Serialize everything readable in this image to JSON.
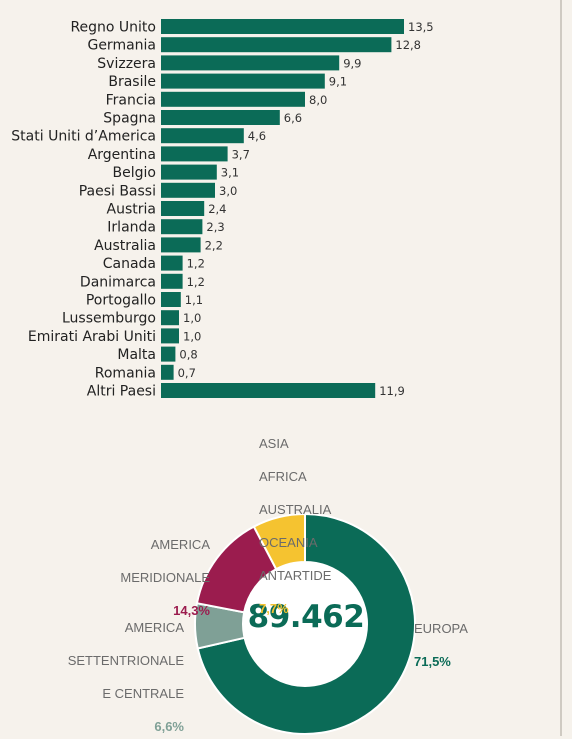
{
  "chart_data": [
    {
      "type": "bar",
      "orientation": "horizontal",
      "categories": [
        "Regno Unito",
        "Germania",
        "Svizzera",
        "Brasile",
        "Francia",
        "Spagna",
        "Stati Uniti d’America",
        "Argentina",
        "Belgio",
        "Paesi Bassi",
        "Austria",
        "Irlanda",
        "Australia",
        "Canada",
        "Danimarca",
        "Portogallo",
        "Lussemburgo",
        "Emirati Arabi Uniti",
        "Malta",
        "Romania",
        "Altri Paesi"
      ],
      "values": [
        13.5,
        12.8,
        9.9,
        9.1,
        8.0,
        6.6,
        4.6,
        3.7,
        3.1,
        3.0,
        2.4,
        2.3,
        2.2,
        1.2,
        1.2,
        1.1,
        1.0,
        1.0,
        0.8,
        0.7,
        11.9
      ],
      "value_labels": [
        "13,5",
        "12,8",
        "9,9",
        "9,1",
        "8,0",
        "6,6",
        "4,6",
        "3,7",
        "3,1",
        "3,0",
        "2,4",
        "2,3",
        "2,2",
        "1,2",
        "1,2",
        "1,1",
        "1,0",
        "1,0",
        "0,8",
        "0,7",
        "11,9"
      ],
      "bar_color": "#0b6b57",
      "grid": false
    },
    {
      "type": "pie",
      "style": "donut",
      "center_label": "89.462",
      "slices": [
        {
          "lines": [
            "EUROPA"
          ],
          "pct": "71,5%",
          "value": 71.5,
          "color": "#0b6b57",
          "label_color": "#0b6b57"
        },
        {
          "lines": [
            "AMERICA",
            "SETTENTRIONALE",
            "E CENTRALE"
          ],
          "pct": "6,6%",
          "value": 6.6,
          "color": "#7fa096",
          "label_color": "#7fa096"
        },
        {
          "lines": [
            "AMERICA",
            "MERIDIONALE"
          ],
          "pct": "14,3%",
          "value": 14.3,
          "color": "#9b1c4e",
          "label_color": "#9b1c4e"
        },
        {
          "lines": [
            "ASIA",
            "AFRICA",
            "AUSTRALIA",
            "OCEANIA",
            "ANTARTIDE"
          ],
          "pct": "7,7%",
          "value": 7.7,
          "color": "#f5c330",
          "label_color": "#f5c330"
        }
      ]
    }
  ]
}
